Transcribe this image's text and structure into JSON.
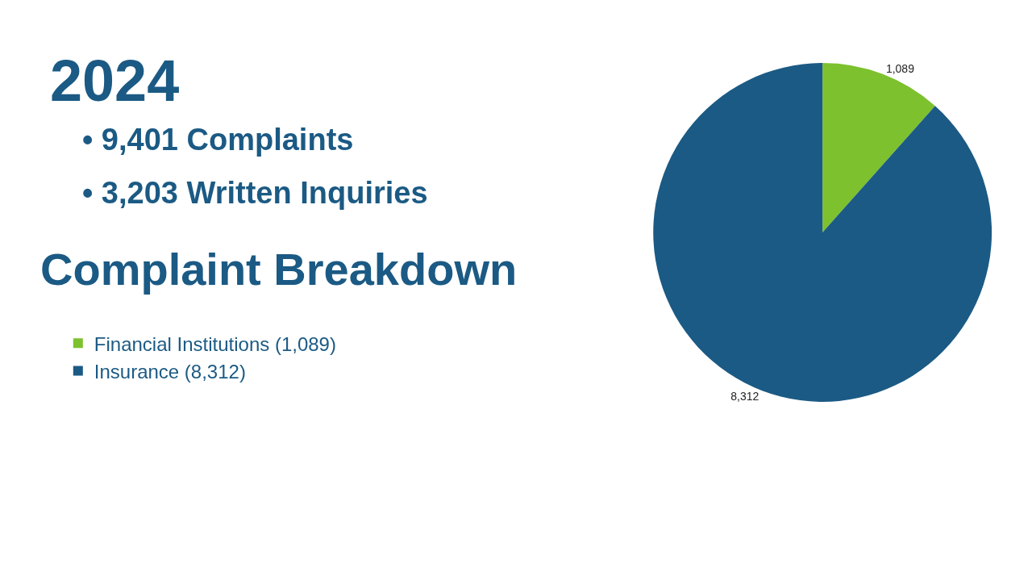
{
  "chart_data": {
    "type": "pie",
    "title": "2024",
    "subtitle": "Complaint Breakdown",
    "annotations": [
      "• 9,401 Complaints",
      "• 3,203 Written Inquiries"
    ],
    "categories": [
      "Financial Institutions (1,089)",
      "Insurance (8,312)"
    ],
    "values": [
      1089,
      8312
    ],
    "colors": [
      "#7dc12e",
      "#1b5a84"
    ],
    "value_labels": [
      "1,089",
      "8,312"
    ],
    "legend": "left"
  }
}
